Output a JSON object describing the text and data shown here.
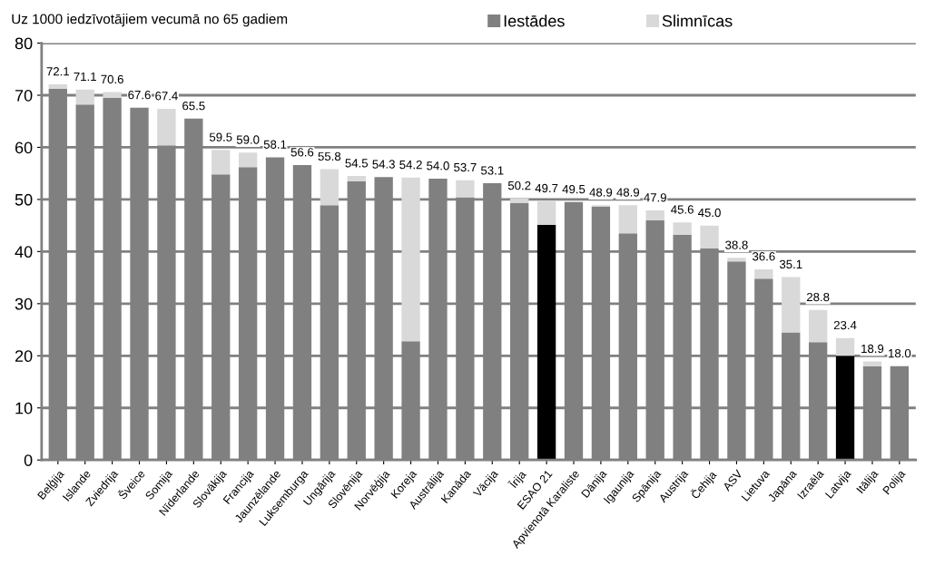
{
  "chart_data": {
    "type": "bar",
    "stacked": true,
    "title": "Uz 1000 iedzīvotājiem vecumā no 65 gadiem",
    "categories": [
      "Beļģija",
      "Islande",
      "Zviedrija",
      "Šveice",
      "Somija",
      "Nīderlande",
      "Slovākija",
      "Francija",
      "Jaunzēlande",
      "Luksemburga",
      "Ungārija",
      "Slovēnija",
      "Norvēģija",
      "Koreja",
      "Austrālija",
      "Kanāda",
      "Vācija",
      "Īrija",
      "ESAO 21",
      "Apvienotā Karaliste",
      "Dānija",
      "Igaunija",
      "Spānija",
      "Austrija",
      "Čehija",
      "ASV",
      "Lietuva",
      "Japāna",
      "Izraēla",
      "Latvija",
      "Itālija",
      "Polija"
    ],
    "series": [
      {
        "name": "Iestādes",
        "color": "#808080",
        "colors": [
          "#808080",
          "#808080",
          "#808080",
          "#808080",
          "#808080",
          "#808080",
          "#808080",
          "#808080",
          "#808080",
          "#808080",
          "#808080",
          "#808080",
          "#808080",
          "#808080",
          "#808080",
          "#808080",
          "#808080",
          "#808080",
          "#000000",
          "#808080",
          "#808080",
          "#808080",
          "#808080",
          "#808080",
          "#808080",
          "#808080",
          "#808080",
          "#808080",
          "#808080",
          "#000000",
          "#808080",
          "#808080"
        ],
        "values": [
          71.2,
          68.2,
          69.5,
          67.6,
          60.4,
          65.5,
          54.8,
          56.2,
          58.1,
          56.6,
          48.9,
          53.5,
          54.3,
          22.8,
          54.0,
          50.4,
          53.1,
          49.3,
          45.1,
          49.5,
          48.6,
          43.5,
          46.0,
          43.2,
          40.6,
          38.1,
          34.8,
          24.5,
          22.6,
          20.0,
          18.0,
          18.0
        ]
      },
      {
        "name": "Slimnīcas",
        "color": "#d9d9d9",
        "values": [
          0.9,
          2.9,
          1.1,
          0,
          7.0,
          0,
          4.7,
          2.8,
          0,
          0,
          6.9,
          1.0,
          0,
          31.4,
          0,
          3.3,
          0,
          0.9,
          4.6,
          0,
          0.3,
          5.4,
          1.9,
          2.4,
          4.4,
          0.7,
          1.8,
          10.6,
          6.2,
          3.4,
          0.9,
          0
        ]
      }
    ],
    "totals": [
      "72.1",
      "71.1",
      "70.6",
      "67.6",
      "67.4",
      "65.5",
      "59.5",
      "59.0",
      "58.1",
      "56.6",
      "55.8",
      "54.5",
      "54.3",
      "54.2",
      "54.0",
      "53.7",
      "53.1",
      "50.2",
      "49.7",
      "49.5",
      "48.9",
      "48.9",
      "47.9",
      "45.6",
      "45.0",
      "38.8",
      "36.6",
      "35.1",
      "28.8",
      "23.4",
      "18.9",
      "18.0"
    ],
    "ylim": [
      0,
      80
    ],
    "yticks": [
      0,
      10,
      20,
      30,
      40,
      50,
      60,
      70,
      80
    ],
    "grid": "y",
    "legend": "top"
  }
}
